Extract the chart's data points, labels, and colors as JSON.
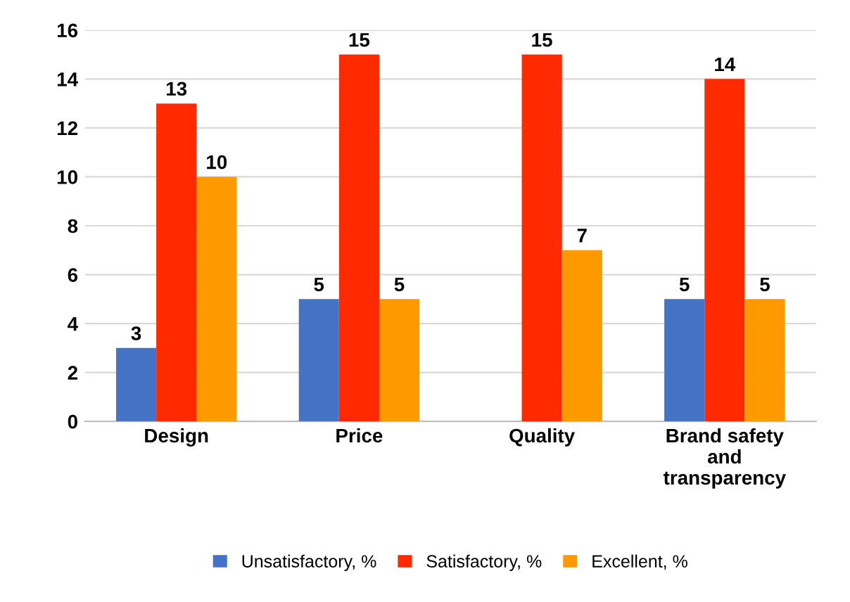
{
  "chart_data": {
    "type": "bar",
    "categories": [
      "Design",
      "Price",
      "Quality",
      "Brand safety\nand\ntransparency"
    ],
    "series": [
      {
        "name": "Unsatisfactory, %",
        "color": "#4472c4",
        "values": [
          3,
          5,
          null,
          5
        ]
      },
      {
        "name": "Satisfactory, %",
        "color": "#ff2a00",
        "values": [
          13,
          15,
          15,
          14
        ]
      },
      {
        "name": "Excellent, %",
        "color": "#ff9900",
        "values": [
          10,
          5,
          7,
          5
        ]
      }
    ],
    "ylim": [
      0,
      16
    ],
    "yticks": [
      0,
      2,
      4,
      6,
      8,
      10,
      12,
      14,
      16
    ],
    "grid": "y",
    "legend": "bottom",
    "data_labels": true
  }
}
